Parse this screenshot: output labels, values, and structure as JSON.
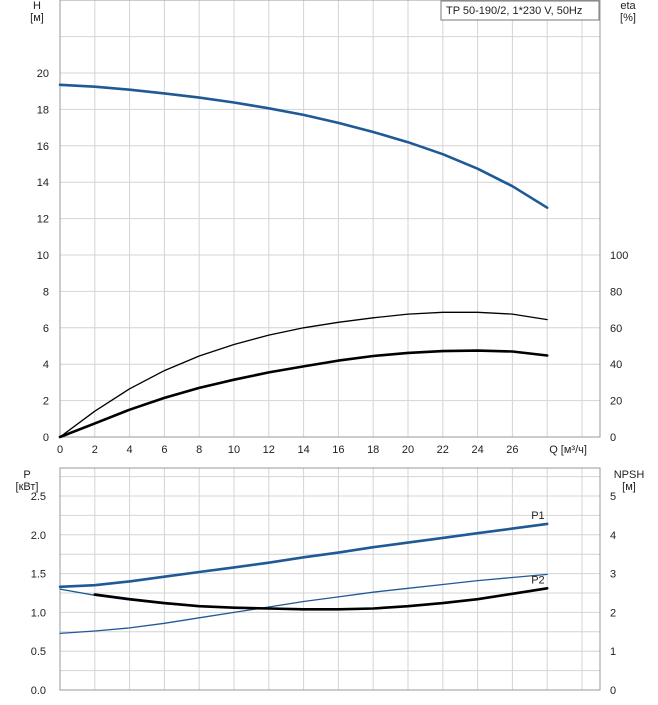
{
  "chart_data": [
    {
      "type": "line",
      "title_box": "TP 50-190/2, 1*230 V, 50Hz",
      "ylabel": "H",
      "ylabel_unit": "[м]",
      "y2label": "eta",
      "y2label_unit": "[%]",
      "xlabel": "Q [м³/ч]",
      "xlim": [
        0,
        30
      ],
      "ylim": [
        0,
        22
      ],
      "y2lim": [
        0,
        110
      ],
      "grid": true,
      "x_tick_labels": [
        "0",
        "2",
        "4",
        "6",
        "8",
        "10",
        "12",
        "14",
        "16",
        "18",
        "20",
        "22",
        "24",
        "26",
        "Q [м³/ч]"
      ],
      "y_tick_labels": [
        "0",
        "2",
        "4",
        "6",
        "8",
        "10",
        "12",
        "14",
        "16",
        "18",
        "20"
      ],
      "y2_tick_labels": [
        "0",
        "20",
        "40",
        "60",
        "80",
        "100"
      ],
      "series": [
        {
          "axis": "left",
          "color": "#1f5a96",
          "style": "thick",
          "x": [
            0,
            2,
            4,
            6,
            8,
            10,
            12,
            14,
            16,
            18,
            20,
            22,
            24,
            26,
            28
          ],
          "y": [
            19.35,
            19.25,
            19.08,
            18.88,
            18.65,
            18.38,
            18.06,
            17.7,
            17.26,
            16.76,
            16.2,
            15.54,
            14.74,
            13.78,
            12.6
          ]
        },
        {
          "axis": "left",
          "color": "#000000",
          "style": "thin",
          "x": [
            0,
            2,
            4,
            6,
            8,
            10,
            12,
            14,
            16,
            18,
            20,
            22,
            24,
            26,
            28
          ],
          "y": [
            0,
            1.42,
            2.65,
            3.65,
            4.45,
            5.08,
            5.6,
            6.0,
            6.3,
            6.55,
            6.75,
            6.85,
            6.85,
            6.75,
            6.45
          ]
        },
        {
          "axis": "left",
          "color": "#000000",
          "style": "thick",
          "x": [
            0,
            2,
            4,
            6,
            8,
            10,
            12,
            14,
            16,
            18,
            20,
            22,
            24,
            26,
            28
          ],
          "y": [
            0,
            0.75,
            1.5,
            2.15,
            2.7,
            3.15,
            3.55,
            3.88,
            4.2,
            4.45,
            4.62,
            4.72,
            4.75,
            4.7,
            4.48
          ]
        }
      ]
    },
    {
      "type": "line",
      "ylabel": "P",
      "ylabel_unit": "[кВт]",
      "y2label": "NPSH",
      "y2label_unit": "[м]",
      "xlim": [
        0,
        30
      ],
      "ylim": [
        0,
        2.75
      ],
      "y2lim": [
        0,
        5.5
      ],
      "grid": true,
      "y_tick_labels": [
        "0.0",
        "0.5",
        "1.0",
        "1.5",
        "2.0",
        "2.5"
      ],
      "y2_tick_labels": [
        "0",
        "1",
        "2",
        "3",
        "4",
        "5"
      ],
      "series": [
        {
          "name": "P1",
          "axis": "left",
          "color": "#1f5a96",
          "style": "thick",
          "x": [
            0,
            2,
            4,
            6,
            8,
            10,
            12,
            14,
            16,
            18,
            20,
            22,
            24,
            26,
            28
          ],
          "y": [
            1.33,
            1.35,
            1.4,
            1.46,
            1.52,
            1.58,
            1.64,
            1.71,
            1.77,
            1.84,
            1.9,
            1.96,
            2.02,
            2.08,
            2.14
          ]
        },
        {
          "name": "P2",
          "axis": "left",
          "color": "#1f5a96",
          "style": "thin",
          "x": [
            0,
            2,
            4,
            6,
            8,
            10,
            12,
            14,
            16,
            18,
            20,
            22,
            24,
            26,
            28
          ],
          "y": [
            1.3,
            1.22,
            1.16,
            1.11,
            1.08,
            1.06,
            1.05,
            1.04,
            1.04,
            1.05,
            1.08,
            1.12,
            1.17,
            1.24,
            1.31
          ]
        },
        {
          "axis": "left",
          "color": "#1f5a96",
          "style": "thin",
          "x": [
            0,
            2,
            4,
            6,
            8,
            10,
            12,
            14,
            16,
            18,
            20,
            22,
            24,
            26,
            28
          ],
          "y": [
            0.73,
            0.76,
            0.8,
            0.86,
            0.93,
            1.0,
            1.07,
            1.14,
            1.2,
            1.26,
            1.31,
            1.36,
            1.41,
            1.45,
            1.49
          ]
        },
        {
          "axis": "left",
          "color": "#000000",
          "style": "thick",
          "x": [
            2,
            4,
            6,
            8,
            10,
            12,
            14,
            16,
            18,
            20,
            22,
            24,
            26,
            28
          ],
          "y": [
            1.23,
            1.17,
            1.12,
            1.08,
            1.06,
            1.05,
            1.04,
            1.04,
            1.05,
            1.08,
            1.12,
            1.17,
            1.24,
            1.31
          ]
        }
      ]
    }
  ]
}
